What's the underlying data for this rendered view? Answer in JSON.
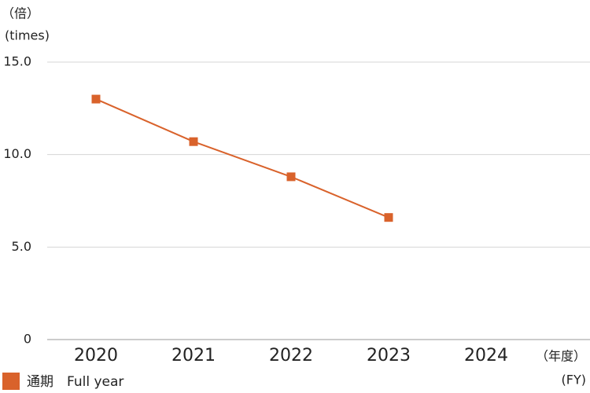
{
  "chart_data": {
    "type": "line",
    "y_unit": [
      "（倍）",
      "(times)"
    ],
    "x_unit": [
      "（年度）",
      "(FY)"
    ],
    "categories": [
      "2020",
      "2021",
      "2022",
      "2023",
      "2024"
    ],
    "series": [
      {
        "name": "通期　Full year",
        "color": "#d9622b",
        "values": [
          13.0,
          10.7,
          8.8,
          6.6,
          null
        ]
      }
    ],
    "ylim": [
      0,
      15
    ],
    "yticks": [
      0,
      {
        "value": 5,
        "label": "5.0"
      },
      {
        "value": 10,
        "label": "10.0"
      },
      {
        "value": 15,
        "label": "15.0"
      }
    ],
    "grid": true
  }
}
